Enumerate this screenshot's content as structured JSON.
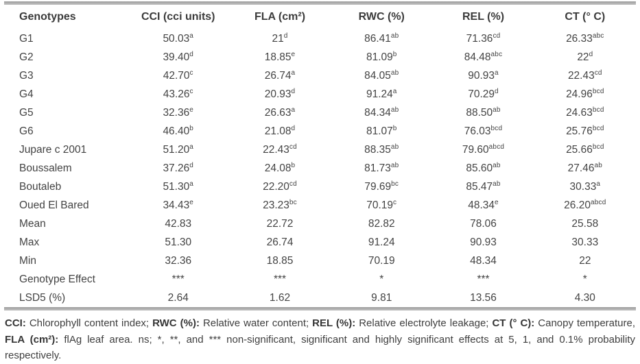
{
  "colors": {
    "rule": "#b0b0b0",
    "text": "#3e3e3e",
    "background": "#ffffff"
  },
  "table": {
    "columns": [
      "Genotypes",
      "CCI (cci units)",
      "FLA (cm²)",
      "RWC (%)",
      "REL (%)",
      "CT (° C)"
    ],
    "rows": [
      {
        "label": "G1",
        "values": [
          "50.03",
          "21",
          "86.41",
          "71.36",
          "26.33"
        ],
        "sups": [
          "a",
          "d",
          "ab",
          "cd",
          "abc"
        ]
      },
      {
        "label": "G2",
        "values": [
          "39.40",
          "18.85",
          "81.09",
          "84.48",
          "22"
        ],
        "sups": [
          "d",
          "e",
          "b",
          "abc",
          "d"
        ]
      },
      {
        "label": "G3",
        "values": [
          "42.70",
          "26.74",
          "84.05",
          "90.93",
          "22.43"
        ],
        "sups": [
          "c",
          "a",
          "ab",
          "a",
          "cd"
        ]
      },
      {
        "label": "G4",
        "values": [
          "43.26",
          "20.93",
          "91.24",
          "70.29",
          "24.96"
        ],
        "sups": [
          "c",
          "d",
          "a",
          "d",
          "bcd"
        ]
      },
      {
        "label": "G5",
        "values": [
          "32.36",
          "26.63",
          "84.34",
          "88.50",
          "24.63"
        ],
        "sups": [
          "e",
          "a",
          "ab",
          "ab",
          "bcd"
        ]
      },
      {
        "label": "G6",
        "values": [
          "46.40",
          "21.08",
          "81.07",
          "76.03",
          "25.76"
        ],
        "sups": [
          "b",
          "d",
          "b",
          "bcd",
          "bcd"
        ]
      },
      {
        "label": "Jupare c 2001",
        "values": [
          "51.20",
          "22.43",
          "88.35",
          "79.60",
          "25.66"
        ],
        "sups": [
          "a",
          "cd",
          "ab",
          "abcd",
          "bcd"
        ]
      },
      {
        "label": "Boussalem",
        "values": [
          "37.26",
          "24.08",
          "81.73",
          "85.60",
          "27.46"
        ],
        "sups": [
          "d",
          "b",
          "ab",
          "ab",
          "ab"
        ]
      },
      {
        "label": "Boutaleb",
        "values": [
          "51.30",
          "22.20",
          "79.69",
          "85.47",
          "30.33"
        ],
        "sups": [
          "a",
          "cd",
          "bc",
          "ab",
          "a"
        ]
      },
      {
        "label": "Oued El Bared",
        "values": [
          "34.43",
          "23.23",
          "70.19",
          "48.34",
          "26.20"
        ],
        "sups": [
          "e",
          "bc",
          "c",
          "e",
          "abcd"
        ]
      },
      {
        "label": "Mean",
        "values": [
          "42.83",
          "22.72",
          "82.82",
          "78.06",
          "25.58"
        ],
        "sups": [
          "",
          "",
          "",
          "",
          ""
        ]
      },
      {
        "label": "Max",
        "values": [
          "51.30",
          "26.74",
          "91.24",
          "90.93",
          "30.33"
        ],
        "sups": [
          "",
          "",
          "",
          "",
          ""
        ]
      },
      {
        "label": "Min",
        "values": [
          "32.36",
          "18.85",
          "70.19",
          "48.34",
          "22"
        ],
        "sups": [
          "",
          "",
          "",
          "",
          ""
        ]
      },
      {
        "label": "Genotype Effect",
        "values": [
          "***",
          "***",
          "*",
          "***",
          "*"
        ],
        "sups": [
          "",
          "",
          "",
          "",
          ""
        ]
      },
      {
        "label": "LSD5 (%)",
        "values": [
          "2.64",
          "1.62",
          "9.81",
          "13.56",
          "4.30"
        ],
        "sups": [
          "",
          "",
          "",
          "",
          ""
        ]
      }
    ]
  },
  "footnote": {
    "parts": [
      {
        "bold": "CCI:",
        "text": " Chlorophyll content index; "
      },
      {
        "bold": "RWC (%):",
        "text": " Relative water content; "
      },
      {
        "bold": "REL (%):",
        "text": " Relative electrolyte leakage; "
      },
      {
        "bold": "CT (° C):",
        "text": " Canopy temperature, "
      },
      {
        "bold": "FLA (cm²):",
        "text": " flAg leaf area. ns; *, **, and *** non-significant, significant and highly significant effects at 5, 1, and 0.1% probability respectively."
      }
    ]
  }
}
